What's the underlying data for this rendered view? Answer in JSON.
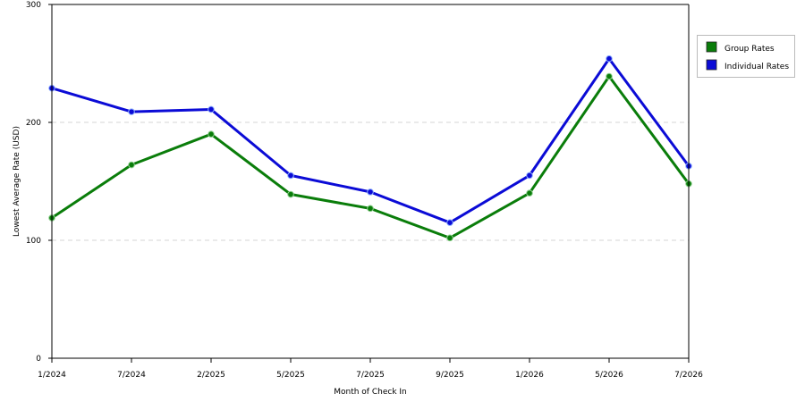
{
  "chart_data": {
    "type": "line",
    "categories": [
      "1/2024",
      "7/2024",
      "2/2025",
      "5/2025",
      "7/2025",
      "9/2025",
      "1/2026",
      "5/2026",
      "7/2026"
    ],
    "series": [
      {
        "name": "Group Rates",
        "color": "#0a7d0a",
        "values": [
          119,
          164,
          190,
          139,
          127,
          102,
          140,
          239,
          148
        ]
      },
      {
        "name": "Individual Rates",
        "color": "#0b0bd6",
        "values": [
          229,
          209,
          211,
          155,
          141,
          115,
          155,
          254,
          163
        ]
      }
    ],
    "xlabel": "Month of Check In",
    "ylabel": "Lowest Average Rate (USD)",
    "ylim": [
      0,
      300
    ],
    "yticks": [
      0,
      100,
      200,
      300
    ],
    "grid": true,
    "legend_position": "top-right"
  }
}
